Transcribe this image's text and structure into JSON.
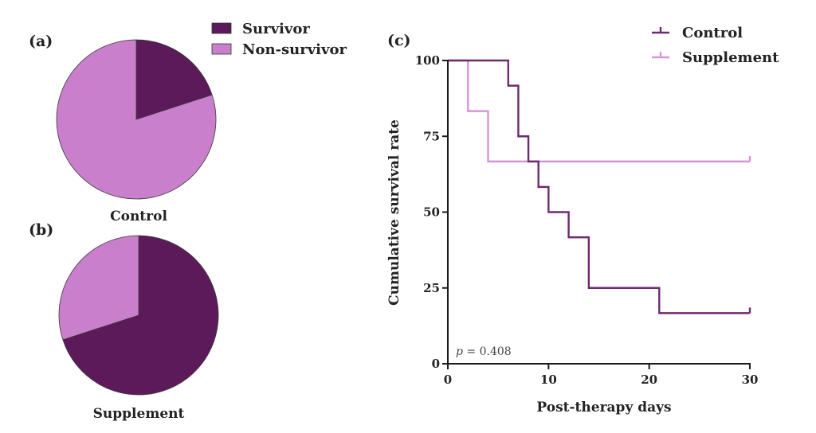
{
  "colors": {
    "survivor": "#5c1a5a",
    "non_survivor": "#c97fcb",
    "control_line": "#6e2a6e",
    "supplement_line": "#d596d8",
    "axis": "#1a1a1a"
  },
  "chart_data": [
    {
      "type": "pie",
      "panel_label": "(a)",
      "title": "Control",
      "legend": [
        "Survivor",
        "Non-survivor"
      ],
      "legend_placement": "top-right",
      "slices": [
        {
          "label": "Survivor",
          "value": 20
        },
        {
          "label": "Non-survivor",
          "value": 80
        }
      ]
    },
    {
      "type": "pie",
      "panel_label": "(b)",
      "title": "Supplement",
      "slices": [
        {
          "label": "Survivor",
          "value": 70
        },
        {
          "label": "Non-survivor",
          "value": 30
        }
      ]
    },
    {
      "type": "line",
      "subtype": "kaplan-meier step",
      "panel_label": "(c)",
      "xlabel": "Post-therapy days",
      "ylabel": "Cumulative survival rate",
      "xlim": [
        0,
        30
      ],
      "ylim": [
        0,
        100
      ],
      "xticks": [
        0,
        10,
        20,
        30
      ],
      "yticks": [
        0,
        25,
        50,
        75,
        100
      ],
      "grid": false,
      "legend_placement": "top-right",
      "annotation": {
        "italic": "p",
        "text": " = 0.408"
      },
      "series": [
        {
          "name": "Control",
          "steps": [
            [
              0,
              100
            ],
            [
              6,
              91.7
            ],
            [
              7,
              75
            ],
            [
              8,
              66.7
            ],
            [
              9,
              58.3
            ],
            [
              10,
              50
            ],
            [
              12,
              41.7
            ],
            [
              14,
              25
            ],
            [
              21,
              16.7
            ]
          ],
          "end_x": 30,
          "censored_at": [
            30
          ]
        },
        {
          "name": "Supplement",
          "steps": [
            [
              0,
              100
            ],
            [
              2,
              83.3
            ],
            [
              4,
              66.7
            ]
          ],
          "end_x": 30,
          "censored_at": [
            30
          ]
        }
      ]
    }
  ]
}
